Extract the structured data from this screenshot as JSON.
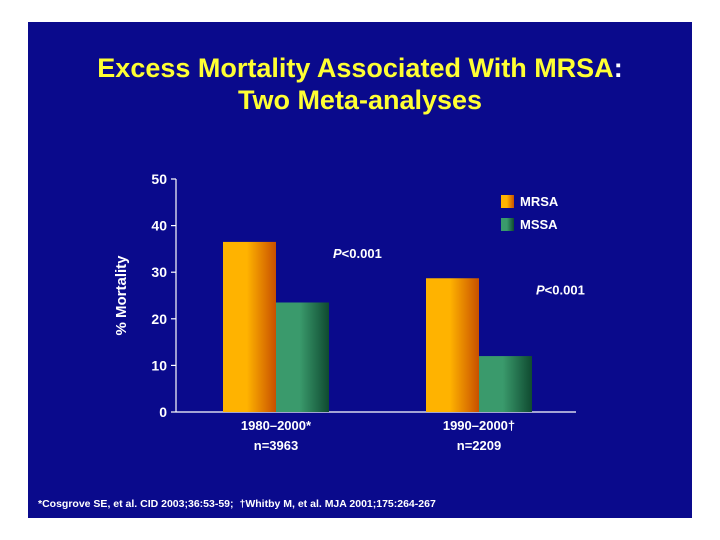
{
  "slide": {
    "title_line1_text": "Excess Mortality Associated With MRSA",
    "title_line1_colon": ":",
    "title_line2": "Two Meta-analyses",
    "footnotes": [
      "*Cosgrove SE, et al. CID 2003;36:53-59;",
      "†Whitby M, et al. MJA 2001;175:264-267"
    ],
    "colors": {
      "background": "#0a0a8c",
      "title": "#ffff33",
      "text": "#ffffff"
    }
  },
  "chart_data": {
    "type": "bar",
    "title": "Excess Mortality Associated With MRSA: Two Meta-analyses",
    "xlabel": "",
    "ylabel": "% Mortality",
    "ylim": [
      0,
      50
    ],
    "yticks": [
      0,
      10,
      20,
      30,
      40,
      50
    ],
    "categories": [
      {
        "line1": "1980–2000*",
        "line2": "n=3963"
      },
      {
        "line1": "1990–2000†",
        "line2": "n=2209"
      }
    ],
    "series": [
      {
        "name": "MRSA",
        "values": [
          36.5,
          28.7
        ],
        "color_light": "#ffb300",
        "color_dark": "#c85000"
      },
      {
        "name": "MSSA",
        "values": [
          23.5,
          12.0
        ],
        "color_light": "#3a9a6c",
        "color_dark": "#0f4a30"
      }
    ],
    "annotations": [
      {
        "category_index": 0,
        "italic": "P",
        "rest": "<0.001"
      },
      {
        "category_index": 1,
        "italic": "P",
        "rest": "<0.001"
      }
    ],
    "legend_position": "top-right",
    "grid": false
  }
}
